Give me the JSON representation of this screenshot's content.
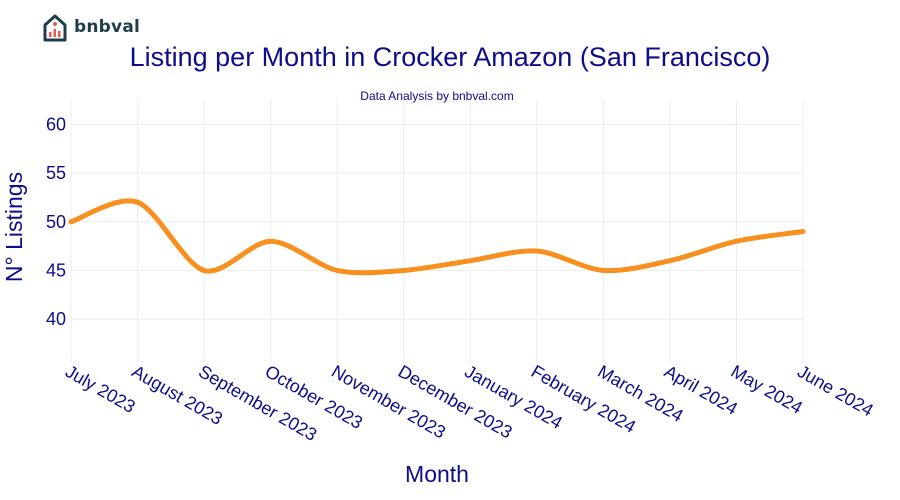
{
  "brand": {
    "name": "bnbval",
    "logo_icon": "house-chart-icon",
    "color": "#1f3d4a",
    "accent": "#e85a4f"
  },
  "chart_data": {
    "type": "line",
    "title": "Listing per Month in Crocker Amazon (San Francisco)",
    "subtitle": "Data Analysis by bnbval.com",
    "xlabel": "Month",
    "ylabel": "N° Listings",
    "categories": [
      "July 2023",
      "August 2023",
      "September 2023",
      "October 2023",
      "November 2023",
      "December 2023",
      "January 2024",
      "February 2024",
      "March 2024",
      "April 2024",
      "May 2024",
      "June 2024"
    ],
    "series": [
      {
        "values": [
          50,
          52,
          45,
          48,
          45,
          45,
          46,
          47,
          45,
          46,
          48,
          49
        ],
        "color": "#f7901e"
      }
    ],
    "ylim": [
      35.5,
      62.5
    ],
    "yticks": [
      40,
      45,
      50,
      55,
      60
    ],
    "grid": true,
    "text_color": "#0d0d8c"
  }
}
